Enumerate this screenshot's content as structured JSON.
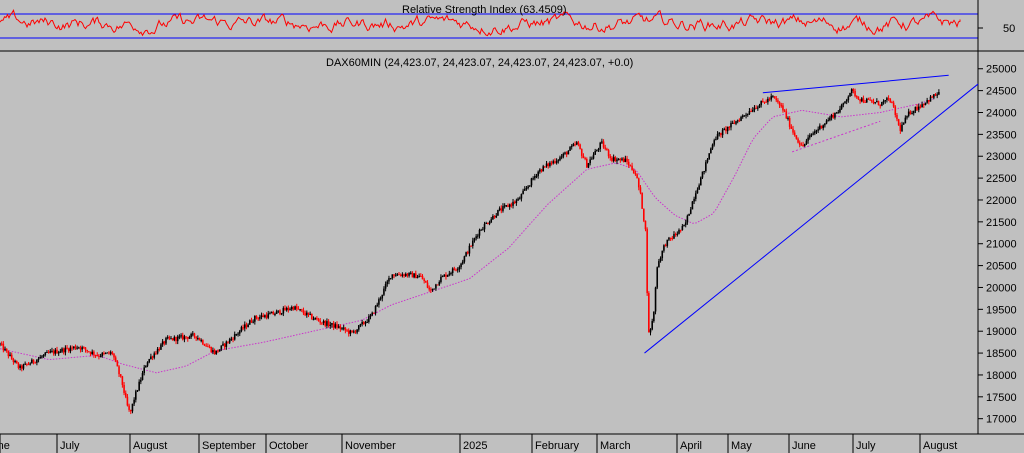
{
  "colors": {
    "background": "#c0c0c0",
    "rsi_line": "#ff0000",
    "rsi_band": "#0000ff",
    "candle_up": "#000000",
    "candle_down": "#ff0000",
    "moving_average": "#cc33cc",
    "trendline": "#0000ff"
  },
  "chart_data": [
    {
      "type": "line",
      "title": "Relative Strength Index (63.4509)",
      "y_ticks": [
        "50"
      ],
      "bands": [
        30,
        70
      ],
      "current_value": 63.4509,
      "ylim": [
        0,
        100
      ],
      "grid": false
    },
    {
      "type": "candlestick",
      "title": "DAX60MIN (24,423.07, 24,423.07, 24,423.07, 24,423.07, +0.0)",
      "y_ticks": [
        "25000",
        "24500",
        "24000",
        "23500",
        "23000",
        "22500",
        "22000",
        "21500",
        "21000",
        "20500",
        "20000",
        "19500",
        "19000",
        "18500",
        "18000",
        "17500",
        "17000"
      ],
      "ylim": [
        16650,
        25200
      ],
      "x_labels": [
        "June",
        "July",
        "August",
        "September",
        "October",
        "November",
        "2025",
        "February",
        "March",
        "April",
        "May",
        "June",
        "July",
        "August"
      ],
      "grid": false,
      "price_path": {
        "x": [
          0,
          0.02,
          0.05,
          0.08,
          0.1,
          0.115,
          0.125,
          0.13,
          0.133,
          0.137,
          0.15,
          0.17,
          0.2,
          0.22,
          0.24,
          0.26,
          0.28,
          0.3,
          0.32,
          0.33,
          0.345,
          0.36,
          0.38,
          0.4,
          0.415,
          0.43,
          0.435,
          0.44,
          0.45,
          0.47,
          0.49,
          0.51,
          0.53,
          0.55,
          0.56,
          0.575,
          0.59,
          0.6,
          0.615,
          0.625,
          0.64,
          0.65,
          0.655,
          0.66,
          0.663,
          0.668,
          0.672,
          0.68,
          0.69,
          0.7,
          0.71,
          0.72,
          0.73,
          0.75,
          0.77,
          0.79,
          0.8,
          0.81,
          0.82,
          0.83,
          0.84,
          0.86,
          0.87,
          0.88,
          0.9,
          0.91,
          0.915,
          0.92,
          0.93,
          0.94,
          0.95,
          0.96
        ],
        "y": [
          18700,
          18150,
          18500,
          18650,
          18450,
          18500,
          17800,
          17300,
          17100,
          17450,
          18300,
          18800,
          18900,
          18500,
          18900,
          19300,
          19400,
          19550,
          19300,
          19200,
          19100,
          18950,
          19350,
          20300,
          20300,
          20250,
          20100,
          19900,
          20200,
          20500,
          21300,
          21750,
          22000,
          22650,
          22800,
          23000,
          23300,
          22800,
          23300,
          22950,
          22900,
          22600,
          22100,
          21300,
          18900,
          19300,
          20500,
          21000,
          21200,
          21400,
          22100,
          22700,
          23400,
          23750,
          24100,
          24350,
          24100,
          23600,
          23200,
          23500,
          23700,
          24100,
          24500,
          24300,
          24200,
          24300,
          24000,
          23600,
          24000,
          24150,
          24300,
          24450
        ],
        "ma_x": [
          0,
          0.05,
          0.1,
          0.125,
          0.16,
          0.19,
          0.22,
          0.27,
          0.32,
          0.37,
          0.4,
          0.44,
          0.48,
          0.52,
          0.56,
          0.6,
          0.63,
          0.65,
          0.67,
          0.69,
          0.71,
          0.73,
          0.75,
          0.77,
          0.79,
          0.82,
          0.86,
          0.9,
          0.94,
          0.96
        ],
        "ma_y": [
          18600,
          18350,
          18450,
          18250,
          18050,
          18200,
          18550,
          18750,
          19000,
          19250,
          19600,
          19900,
          20200,
          20900,
          21900,
          22700,
          22850,
          22700,
          22050,
          21650,
          21450,
          21700,
          22500,
          23400,
          23900,
          24050,
          23900,
          24000,
          24200,
          24350
        ]
      },
      "trendlines": [
        {
          "from": [
            0.659,
            18500
          ],
          "to": [
            1.0,
            24650
          ]
        },
        {
          "from": [
            0.78,
            24450
          ],
          "to": [
            0.97,
            24850
          ]
        },
        {
          "from": [
            0.81,
            23100
          ],
          "to": [
            0.9,
            23800
          ]
        }
      ]
    }
  ]
}
